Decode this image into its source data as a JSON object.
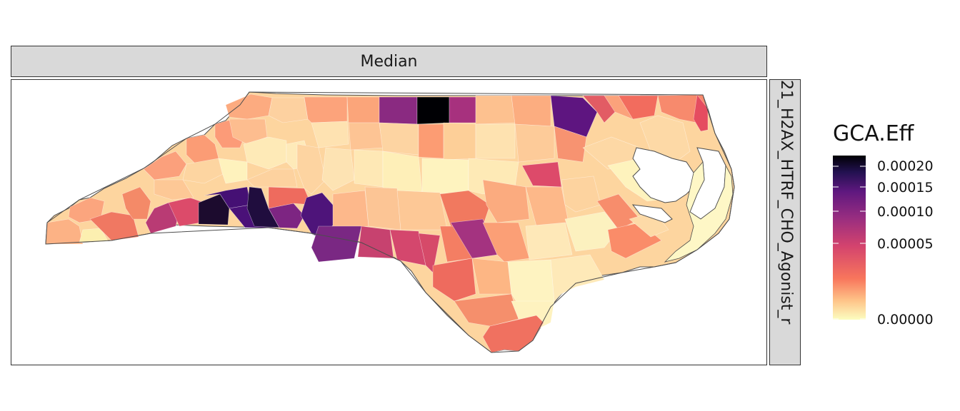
{
  "facet": {
    "top_label": "Median",
    "right_label": "21_H2AX_HTRF_CHO_Agonist_r"
  },
  "legend": {
    "title": "GCA.Eff",
    "ticks": [
      "0.00020",
      "0.00015",
      "0.00010",
      "0.00005",
      "0.00000"
    ],
    "tick_values": [
      0.0002,
      0.00015,
      0.0001,
      5e-05,
      0.0
    ],
    "palette": "magma-reversed",
    "colors": [
      "#fcfdbf",
      "#fec287",
      "#f8765c",
      "#d3436e",
      "#982d80",
      "#5f187f",
      "#221150",
      "#000004"
    ]
  }
}
